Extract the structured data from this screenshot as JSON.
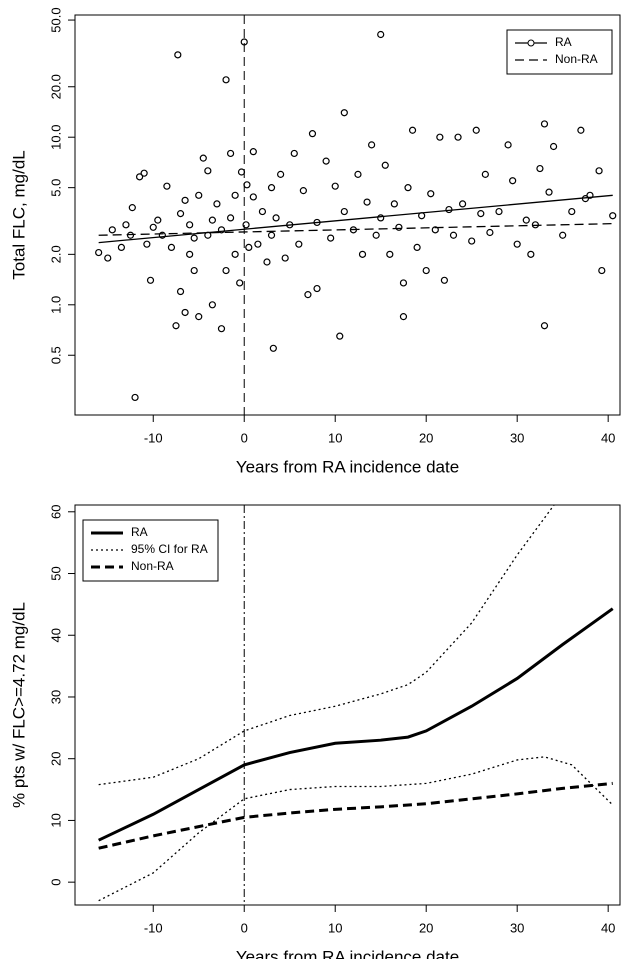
{
  "chart_data": [
    {
      "type": "scatter",
      "xlabel": "Years from RA incidence date",
      "ylabel": "Total FLC, mg/dL",
      "log_y": true,
      "xlim": [
        -18.6,
        41.3
      ],
      "ylim": [
        0.22,
        53.6
      ],
      "xticks": [
        -10,
        0,
        10,
        20,
        30,
        40
      ],
      "yticks": [
        {
          "value": 0.5,
          "label": "0.5"
        },
        {
          "value": 1,
          "label": "1.0"
        },
        {
          "value": 2,
          "label": "2.0"
        },
        {
          "value": 5,
          "label": "5.0"
        },
        {
          "value": 10,
          "label": "10.0"
        },
        {
          "value": 20,
          "label": "20.0"
        },
        {
          "value": 50,
          "label": "50.0"
        }
      ],
      "vline": {
        "x": 0,
        "style": "dashed"
      },
      "legend": "top-right",
      "points": {
        "color": "#000000",
        "x": [
          -16,
          -15,
          -14.5,
          -13.5,
          -13,
          -12.5,
          -12.3,
          -12,
          -11.5,
          -11,
          -10.7,
          -10.3,
          -10,
          -9.5,
          -9,
          -8.5,
          -8,
          -7.5,
          -7.3,
          -7,
          -7,
          -6.5,
          -6.5,
          -6,
          -6,
          -5.5,
          -5.5,
          -5,
          -5,
          -4.5,
          -4,
          -4,
          -3.5,
          -3.5,
          -3,
          -2.5,
          -2.5,
          -2,
          -2,
          -1.5,
          -1.5,
          -1,
          -1,
          -0.5,
          -0.3,
          0,
          0.2,
          0.3,
          0.5,
          1,
          1,
          1.5,
          2,
          2.5,
          3,
          3,
          3.2,
          3.5,
          4,
          4.5,
          5,
          5.5,
          6,
          6.5,
          7,
          7.5,
          8,
          8,
          9,
          9.5,
          10,
          10.5,
          11,
          11,
          12,
          12.5,
          13,
          13.5,
          14,
          14.5,
          15,
          15,
          15.5,
          16,
          16.5,
          17,
          17.5,
          17.5,
          18,
          18.5,
          19,
          19.5,
          20,
          20.5,
          21,
          21.5,
          22,
          22.5,
          23,
          23.5,
          24,
          25,
          25.5,
          26,
          26.5,
          27,
          28,
          29,
          29.5,
          30,
          31,
          31.5,
          32,
          32.5,
          33,
          33,
          33.5,
          34,
          35,
          36,
          37,
          37.5,
          38,
          39,
          39.3,
          40.5
        ],
        "values": [
          2.05,
          1.9,
          2.8,
          2.2,
          3.0,
          2.6,
          3.8,
          0.28,
          5.8,
          6.1,
          2.3,
          1.4,
          2.9,
          3.2,
          2.6,
          5.1,
          2.2,
          0.75,
          31,
          1.2,
          3.5,
          4.2,
          0.9,
          2.0,
          3.0,
          2.5,
          1.6,
          0.85,
          4.5,
          7.5,
          2.6,
          6.3,
          1.0,
          3.2,
          4.0,
          0.72,
          2.8,
          22,
          1.6,
          8,
          3.3,
          2.0,
          4.5,
          1.35,
          6.2,
          37,
          3.0,
          5.2,
          2.2,
          4.4,
          8.2,
          2.3,
          3.6,
          1.8,
          5.0,
          2.6,
          0.55,
          3.3,
          6.0,
          1.9,
          3.0,
          8,
          2.3,
          4.8,
          1.15,
          10.5,
          1.25,
          3.1,
          7.2,
          2.5,
          5.1,
          0.65,
          14,
          3.6,
          2.8,
          6.0,
          2.0,
          4.1,
          9.0,
          2.6,
          41,
          3.3,
          6.8,
          2.0,
          4.0,
          2.9,
          0.85,
          1.35,
          5.0,
          11,
          2.2,
          3.4,
          1.6,
          4.6,
          2.8,
          10,
          1.4,
          3.7,
          2.6,
          10,
          4.0,
          2.4,
          11,
          3.5,
          6.0,
          2.7,
          3.6,
          9.0,
          5.5,
          2.3,
          3.2,
          2.0,
          3.0,
          6.5,
          0.75,
          12,
          4.7,
          8.8,
          2.6,
          3.6,
          11,
          4.3,
          4.5,
          6.3,
          1.6,
          3.4
        ]
      },
      "series": [
        {
          "name": "RA",
          "color": "#000000",
          "style": "solid",
          "marker": "circle",
          "x": [
            -16,
            40.5
          ],
          "values": [
            2.35,
            4.5
          ]
        },
        {
          "name": "Non-RA",
          "color": "#000000",
          "style": "dashed",
          "x": [
            -16,
            40.5
          ],
          "values": [
            2.6,
            3.05
          ]
        }
      ]
    },
    {
      "type": "line",
      "xlabel": "Years from RA incidence date",
      "ylabel": "% pts w/ FLC>=4.72 mg/dL",
      "xlim": [
        -18.6,
        41.3
      ],
      "ylim": [
        -3.7,
        61.1
      ],
      "xticks": [
        -10,
        0,
        10,
        20,
        30,
        40
      ],
      "yticks": [
        0,
        10,
        20,
        30,
        40,
        50,
        60
      ],
      "vline": {
        "x": 0,
        "style": "dotdash"
      },
      "legend": "top-left",
      "series": [
        {
          "name": "RA",
          "color": "#000000",
          "style": "solid",
          "x": [
            -16,
            -10,
            -5,
            0,
            5,
            10,
            15,
            18,
            20,
            25,
            30,
            35,
            40.5
          ],
          "values": [
            6.8,
            11,
            15,
            19,
            21,
            22.5,
            23,
            23.5,
            24.5,
            28.5,
            33,
            38.5,
            44.3
          ]
        },
        {
          "name": "95% CI for RA",
          "color": "#000000",
          "style": "dotted",
          "x": [
            -16,
            -10,
            -5,
            0,
            5,
            10,
            15,
            18,
            20,
            25,
            30,
            33,
            35
          ],
          "values": [
            15.8,
            17,
            20,
            24.5,
            27,
            28.5,
            30.5,
            32,
            34,
            42,
            53,
            59,
            63
          ]
        },
        {
          "name": "95% CI for RA",
          "color": "#000000",
          "style": "dotted",
          "legend": false,
          "x": [
            -16,
            -10,
            -5,
            0,
            5,
            10,
            15,
            20,
            25,
            30,
            33,
            36,
            40.5
          ],
          "values": [
            -3,
            1.5,
            8,
            13.5,
            15,
            15.5,
            15.5,
            16,
            17.5,
            19.8,
            20.3,
            19,
            12.5
          ]
        },
        {
          "name": "Non-RA",
          "color": "#000000",
          "style": "dashed",
          "x": [
            -16,
            -10,
            -5,
            0,
            5,
            10,
            15,
            20,
            25,
            30,
            35,
            40.5
          ],
          "values": [
            5.5,
            7.5,
            9,
            10.5,
            11.2,
            11.8,
            12.2,
            12.7,
            13.5,
            14.3,
            15.2,
            16
          ]
        }
      ]
    }
  ]
}
